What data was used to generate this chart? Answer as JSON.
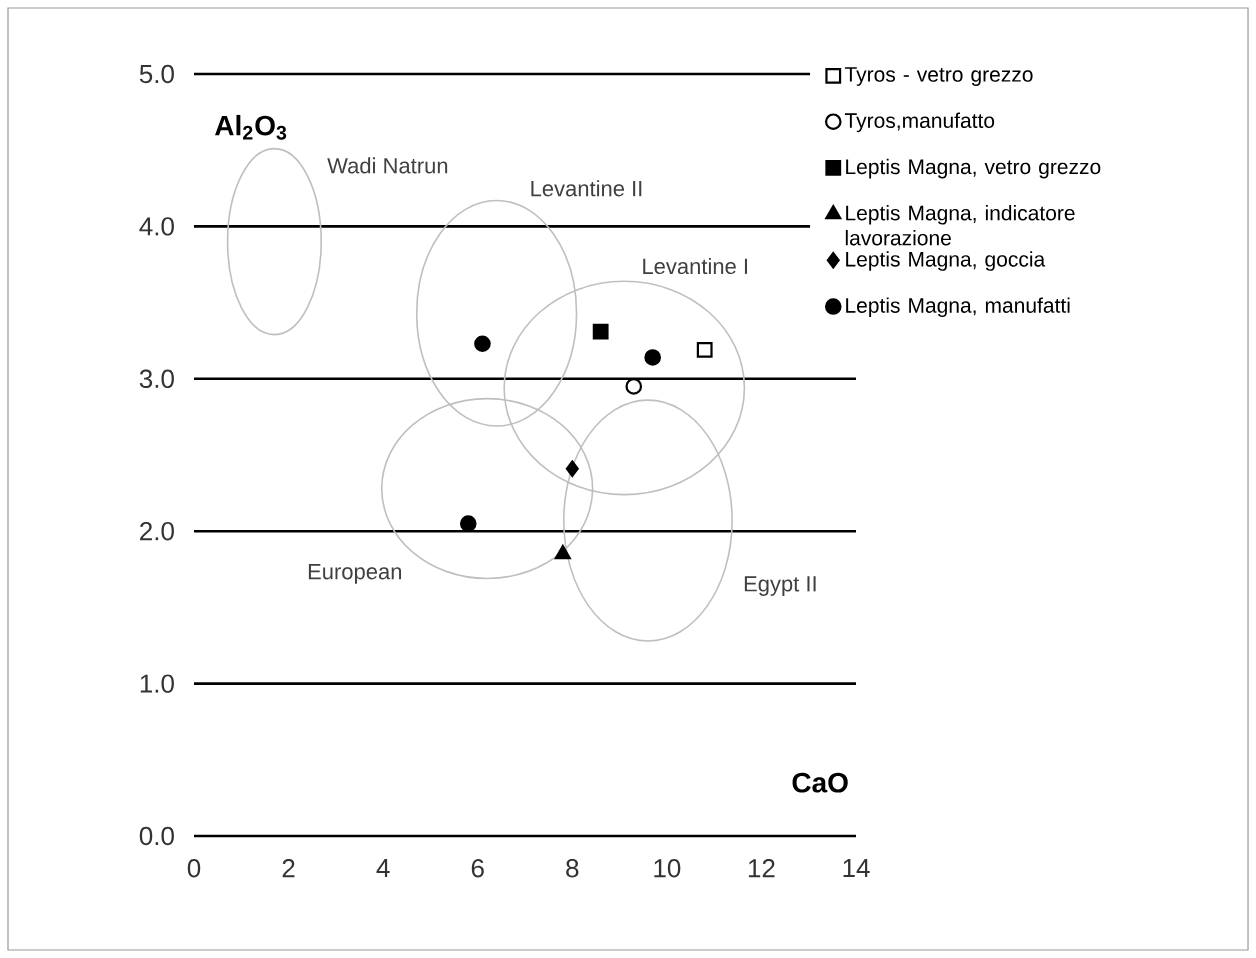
{
  "chart_data": {
    "type": "scatter",
    "xlabel": "**CaO**",
    "ylabel": "**Al$_{2}$O$_{3}$**",
    "xlim": [
      0,
      14
    ],
    "ylim": [
      0,
      5
    ],
    "xticks": [
      0,
      2,
      4,
      6,
      8,
      10,
      12,
      14
    ],
    "yticks": [
      {
        "value": 0,
        "label": "0.0"
      },
      {
        "value": 1,
        "label": "1.0"
      },
      {
        "value": 2,
        "label": "2.0"
      },
      {
        "value": 3,
        "label": "3.0"
      },
      {
        "value": 4,
        "label": "4.0"
      },
      {
        "value": 5,
        "label": "5.0"
      }
    ],
    "grid": "y",
    "legend": "right",
    "series": [
      {
        "name": "Tyros - vetro grezzo",
        "marker": "square",
        "color": "#ffffff",
        "x": [
          10.8
        ],
        "values": [
          3.19
        ]
      },
      {
        "name": "Tyros,manufatto",
        "marker": "circle",
        "color": "#ffffff",
        "x": [
          9.3
        ],
        "values": [
          2.95
        ]
      },
      {
        "name": "Leptis Magna, vetro grezzo",
        "marker": "square",
        "color": "#000000",
        "x": [
          8.6
        ],
        "values": [
          3.31
        ]
      },
      {
        "name": "Leptis Magna, indicatore lavorazione",
        "marker": "triangle",
        "color": "#000000",
        "x": [
          7.8
        ],
        "values": [
          1.85
        ]
      },
      {
        "name": "Leptis Magna, goccia",
        "marker": "diamond",
        "color": "#000000",
        "x": [
          8.0
        ],
        "values": [
          2.41
        ]
      },
      {
        "name": "Leptis Magna, manufatti",
        "marker": "circle",
        "color": "#000000",
        "x": [
          6.1,
          9.7,
          5.8
        ],
        "values": [
          3.23,
          3.14,
          2.05
        ]
      }
    ],
    "annotations": [
      "Wadi Natrun",
      "Levantine II",
      "Levantine I",
      "European",
      "Egypt II"
    ]
  }
}
